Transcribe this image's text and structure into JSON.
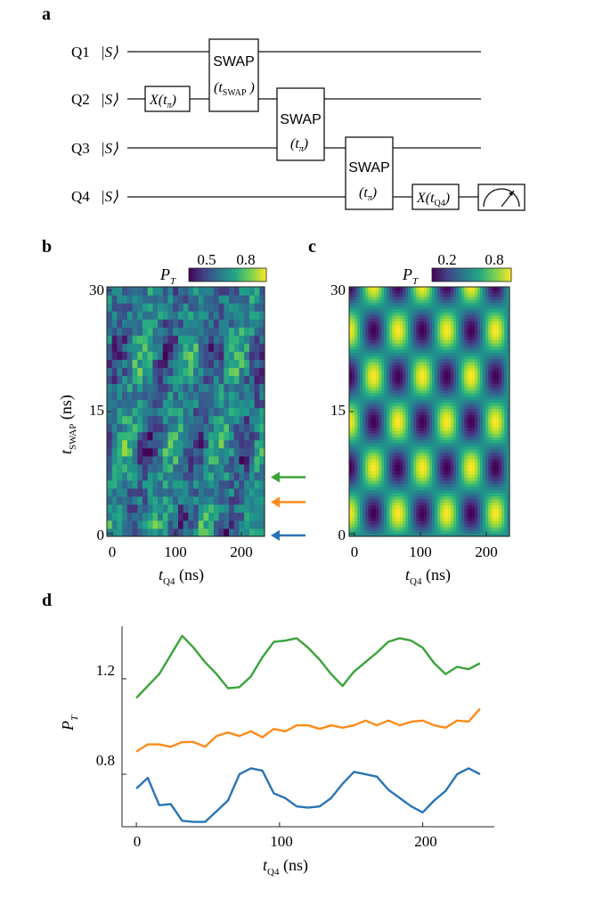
{
  "panels": {
    "a": "a",
    "b": "b",
    "c": "c",
    "d": "d"
  },
  "circuit": {
    "qubits": [
      {
        "name": "Q1",
        "ket": "|S⟩"
      },
      {
        "name": "Q2",
        "ket": "|S⟩"
      },
      {
        "name": "Q3",
        "ket": "|S⟩"
      },
      {
        "name": "Q4",
        "ket": "|S⟩"
      }
    ],
    "gates": {
      "x_pi": {
        "label": "X(t",
        "sub": "π",
        "close": ")"
      },
      "swap1": {
        "label": "SWAP",
        "param": "(t",
        "sub": "SWAP",
        "close": " )"
      },
      "swap2": {
        "label": "SWAP",
        "param": "(t",
        "sub": "π",
        "close": ")"
      },
      "swap3": {
        "label": "SWAP",
        "param": "(t",
        "sub": "π",
        "close": ")"
      },
      "x_q4": {
        "label": "X(t",
        "sub": "Q4",
        "close": ")"
      }
    },
    "measurement": "meter"
  },
  "colors": {
    "green": "#3aa33a",
    "orange": "#ff8a1a",
    "blue": "#2a74b5"
  },
  "chart_data": [
    {
      "panel": "b",
      "type": "heatmap",
      "title": "",
      "xlabel": {
        "main": "t",
        "sub": "Q4",
        "unit": " (ns)"
      },
      "ylabel": {
        "main": "t",
        "sub": "SWAP",
        "unit": " (ns)"
      },
      "xlim": [
        0,
        240
      ],
      "ylim": [
        0,
        30
      ],
      "xticks": [
        "0",
        "100",
        "200"
      ],
      "yticks": [
        "0",
        "15",
        "30"
      ],
      "colorbar": {
        "label": "P",
        "label_sub": "T",
        "range": [
          0.35,
          0.95
        ],
        "ticks": [
          "0.5",
          "0.8"
        ]
      },
      "arrows": [
        {
          "t_swap": 7,
          "color": "green"
        },
        {
          "t_swap": 4,
          "color": "orange"
        },
        {
          "t_swap": 0,
          "color": "blue"
        }
      ],
      "x_bins": 31,
      "y_bins": 31
    },
    {
      "panel": "c",
      "type": "heatmap",
      "title": "",
      "xlabel": {
        "main": "t",
        "sub": "Q4",
        "unit": " (ns)"
      },
      "xlim": [
        0,
        240
      ],
      "ylim": [
        0,
        30
      ],
      "xticks": [
        "0",
        "100",
        "200"
      ],
      "yticks": [
        "0",
        "15",
        "30"
      ],
      "colorbar": {
        "label": "P",
        "label_sub": "T",
        "range": [
          0.05,
          0.95
        ],
        "ticks": [
          "0.2",
          "0.8"
        ]
      },
      "model": "P_T = 0.5 + 0.45·cos(2π t_Q4/73) · cos(2π t_SWAP/11)"
    },
    {
      "panel": "d",
      "type": "line",
      "title": "",
      "xlabel": {
        "main": "t",
        "sub": "Q4",
        "unit": " (ns)"
      },
      "ylabel": {
        "main": "P",
        "sub": "T"
      },
      "xlim": [
        -10,
        250
      ],
      "ylim": [
        0.58,
        1.42
      ],
      "xticks": [
        "0",
        "100",
        "200"
      ],
      "yticks": [
        "0.8",
        "1.2"
      ],
      "x": [
        0,
        8,
        16,
        24,
        32,
        40,
        48,
        56,
        64,
        72,
        80,
        88,
        96,
        104,
        112,
        120,
        128,
        136,
        144,
        152,
        160,
        168,
        176,
        184,
        192,
        200,
        208,
        216,
        224,
        232,
        240
      ],
      "series": [
        {
          "name": "green",
          "color": "green",
          "values": [
            1.12,
            1.17,
            1.22,
            1.3,
            1.38,
            1.33,
            1.27,
            1.22,
            1.16,
            1.165,
            1.21,
            1.29,
            1.355,
            1.36,
            1.37,
            1.33,
            1.28,
            1.22,
            1.17,
            1.23,
            1.27,
            1.31,
            1.355,
            1.37,
            1.36,
            1.33,
            1.265,
            1.22,
            1.25,
            1.24,
            1.265
          ]
        },
        {
          "name": "orange",
          "color": "orange",
          "values": [
            0.895,
            0.925,
            0.925,
            0.915,
            0.935,
            0.935,
            0.915,
            0.96,
            0.975,
            0.96,
            0.98,
            0.955,
            0.99,
            0.98,
            1.005,
            1.005,
            0.99,
            1.005,
            0.995,
            1.005,
            1.025,
            1.005,
            1.025,
            1.005,
            1.02,
            1.025,
            1.005,
            0.995,
            1.025,
            1.02,
            1.075
          ]
        },
        {
          "name": "blue",
          "color": "blue",
          "values": [
            0.74,
            0.785,
            0.67,
            0.675,
            0.605,
            0.6,
            0.6,
            0.645,
            0.69,
            0.8,
            0.825,
            0.815,
            0.72,
            0.7,
            0.665,
            0.66,
            0.665,
            0.7,
            0.76,
            0.81,
            0.8,
            0.79,
            0.735,
            0.7,
            0.665,
            0.64,
            0.69,
            0.73,
            0.8,
            0.825,
            0.8
          ]
        }
      ]
    }
  ]
}
